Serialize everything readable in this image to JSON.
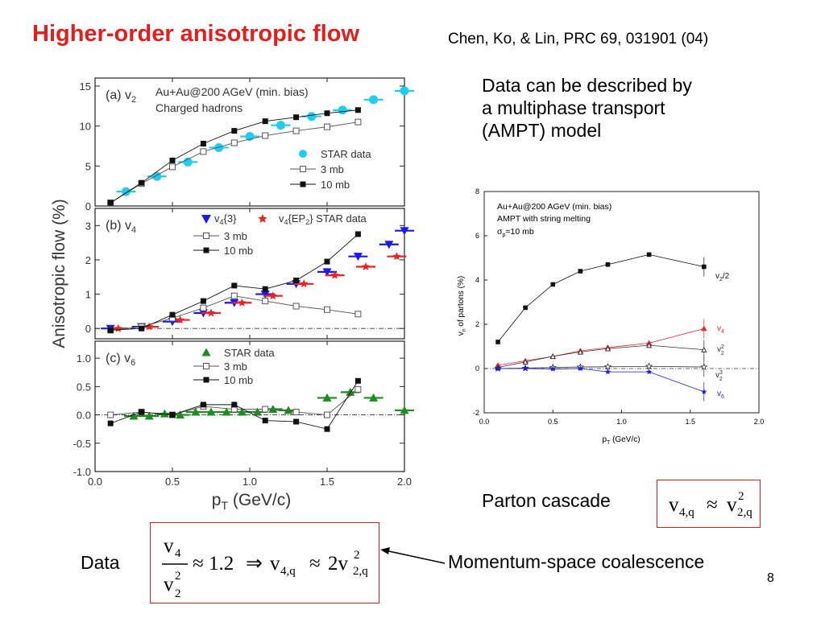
{
  "slide": {
    "title": "Higher-order anisotropic flow",
    "reference": "Chen, Ko, & Lin, PRC 69, 031901 (04)",
    "description_lines": [
      "Data can be described by",
      "a multiphase transport",
      "(AMPT) model"
    ],
    "parton_label": "Parton cascade",
    "data_label": "Data",
    "coalescence_label": "Momentum-space coalescence",
    "page_number": "8",
    "formula1": {
      "lhs": "v",
      "lhs_sub": "4,q",
      "op": "≈",
      "rhs": "v",
      "rhs_sup": "2",
      "rhs_sub": "2,q"
    },
    "formula2": {
      "num": "v",
      "num_sub": "4",
      "den": "v",
      "den_sup": "2",
      "den_sub": "2",
      "approx": "≈ 1.2",
      "implies": "⇒",
      "v": "v",
      "v_sub": "4,q",
      "approx2": "≈",
      "coef": "2v",
      "coef_sup": "2",
      "coef_sub": "2,q"
    },
    "colors": {
      "title": "#e21f1f",
      "star_cyan": "#22ccee",
      "star_blue": "#1a1aee",
      "star_red": "#ee2222",
      "star_green": "#1e8c1e",
      "box_border": "#e02020"
    }
  },
  "chart_data": [
    {
      "type": "scatter",
      "panel": "(a)",
      "panel_label": "(a) v",
      "panel_sub": "2",
      "annotation": [
        "Au+Au@200 AGeV (min. bias)",
        "Charged hadrons"
      ],
      "ylabel": "Anisotropic flow (%)",
      "xlabel": "p",
      "xlabel_sub": "T",
      "xlabel_unit": " (GeV/c)",
      "xlim": [
        0,
        2.0
      ],
      "ylim": [
        0,
        16
      ],
      "yticks": [
        "0",
        "5",
        "10",
        "15"
      ],
      "legend": [
        {
          "name": "STAR data",
          "marker": "circle",
          "color": "#22ccee"
        },
        {
          "name": "3 mb",
          "marker": "open-square",
          "color": "#555555"
        },
        {
          "name": "10 mb",
          "marker": "filled-square",
          "color": "#111111"
        }
      ],
      "series": [
        {
          "name": "STAR data",
          "x": [
            0.2,
            0.4,
            0.6,
            0.8,
            1.0,
            1.2,
            1.4,
            1.6,
            1.8,
            2.0
          ],
          "y": [
            1.8,
            3.7,
            5.5,
            7.3,
            8.7,
            10.1,
            11.2,
            12.0,
            13.3,
            14.4
          ]
        },
        {
          "name": "3 mb",
          "x": [
            0.1,
            0.3,
            0.5,
            0.7,
            0.9,
            1.1,
            1.3,
            1.5,
            1.7
          ],
          "y": [
            0.4,
            2.8,
            4.9,
            6.8,
            7.9,
            8.8,
            9.4,
            9.9,
            10.5
          ]
        },
        {
          "name": "10 mb",
          "x": [
            0.1,
            0.3,
            0.5,
            0.7,
            0.9,
            1.1,
            1.3,
            1.5,
            1.7
          ],
          "y": [
            0.4,
            2.9,
            5.7,
            7.8,
            9.4,
            10.6,
            11.1,
            11.6,
            12.0
          ]
        }
      ]
    },
    {
      "type": "scatter",
      "panel": "(b)",
      "panel_label": "(b) v",
      "panel_sub": "4",
      "xlim": [
        0,
        2.0
      ],
      "ylim": [
        -0.3,
        3.5
      ],
      "yticks": [
        "0",
        "1",
        "2",
        "3"
      ],
      "legend": [
        {
          "name": "v4{3}",
          "marker": "triangle-down",
          "color": "#1a1aee"
        },
        {
          "name": "v4{EP2} STAR data",
          "marker": "star",
          "color": "#ee2222"
        },
        {
          "name": "3 mb",
          "marker": "open-square",
          "color": "#555555"
        },
        {
          "name": "10 mb",
          "marker": "filled-square",
          "color": "#111111"
        }
      ],
      "series": [
        {
          "name": "v4{3}",
          "x": [
            0.1,
            0.3,
            0.5,
            0.7,
            0.9,
            1.1,
            1.3,
            1.5,
            1.7,
            1.9,
            2.0
          ],
          "y": [
            0.0,
            0.05,
            0.2,
            0.45,
            0.75,
            1.0,
            1.3,
            1.65,
            2.1,
            2.45,
            2.85
          ]
        },
        {
          "name": "v4{EP2} STAR data",
          "x": [
            0.15,
            0.35,
            0.55,
            0.75,
            0.95,
            1.15,
            1.35,
            1.55,
            1.75,
            1.95
          ],
          "y": [
            0.0,
            0.05,
            0.25,
            0.45,
            0.75,
            0.95,
            1.3,
            1.55,
            1.8,
            2.1
          ]
        },
        {
          "name": "3 mb",
          "x": [
            0.1,
            0.3,
            0.5,
            0.7,
            0.9,
            1.1,
            1.3,
            1.5,
            1.7
          ],
          "y": [
            -0.05,
            0.05,
            0.3,
            0.6,
            0.95,
            0.8,
            0.65,
            0.55,
            0.42
          ]
        },
        {
          "name": "10 mb",
          "x": [
            0.1,
            0.3,
            0.5,
            0.7,
            0.9,
            1.1,
            1.3,
            1.5,
            1.7
          ],
          "y": [
            -0.05,
            0.0,
            0.4,
            0.8,
            1.25,
            1.15,
            1.4,
            1.95,
            2.75
          ]
        }
      ]
    },
    {
      "type": "scatter",
      "panel": "(c)",
      "panel_label": "(c) v",
      "panel_sub": "6",
      "xlim": [
        0,
        2.0
      ],
      "ylim": [
        -1.0,
        1.3
      ],
      "yticks": [
        "-1.0",
        "-0.5",
        "0.0",
        "0.5",
        "1.0"
      ],
      "xticks": [
        "0.0",
        "0.5",
        "1.0",
        "1.5",
        "2.0"
      ],
      "legend": [
        {
          "name": "STAR data",
          "marker": "triangle-up",
          "color": "#1e8c1e"
        },
        {
          "name": "3 mb",
          "marker": "open-square",
          "color": "#555555"
        },
        {
          "name": "10 mb",
          "marker": "filled-square",
          "color": "#111111"
        }
      ],
      "series": [
        {
          "name": "STAR data",
          "x": [
            0.25,
            0.35,
            0.45,
            0.55,
            0.65,
            0.75,
            0.85,
            0.95,
            1.05,
            1.15,
            1.25,
            1.5,
            1.65,
            1.8,
            2.0
          ],
          "y": [
            -0.02,
            -0.02,
            0.02,
            0.0,
            0.05,
            0.05,
            0.05,
            0.05,
            0.05,
            0.1,
            0.08,
            0.3,
            0.4,
            0.3,
            0.08
          ]
        },
        {
          "name": "3 mb",
          "x": [
            0.1,
            0.3,
            0.5,
            0.7,
            0.9,
            1.1,
            1.3,
            1.5,
            1.7
          ],
          "y": [
            0.0,
            0.05,
            0.0,
            0.15,
            0.1,
            0.1,
            0.05,
            0.0,
            0.45
          ]
        },
        {
          "name": "10 mb",
          "x": [
            0.1,
            0.3,
            0.5,
            0.7,
            0.9,
            1.1,
            1.3,
            1.5,
            1.7
          ],
          "y": [
            -0.15,
            0.05,
            0.0,
            0.18,
            0.18,
            -0.1,
            -0.12,
            -0.25,
            0.6
          ]
        }
      ]
    },
    {
      "type": "line",
      "panel": "AMPT",
      "annotation": [
        "Au+Au@200 AGeV (min. bias)",
        "AMPT with string melting",
        "σ",
        "p",
        "=10 mb"
      ],
      "ylabel": "v",
      "ylabel_sub": "n",
      "ylabel_rest": " of partons (%)",
      "xlabel": "p",
      "xlabel_sub": "T",
      "xlabel_unit": " (GeV/c)",
      "xlim": [
        0,
        2.0
      ],
      "ylim": [
        -2,
        8
      ],
      "xticks": [
        "0.0",
        "0.5",
        "1.0",
        "1.5",
        "2.0"
      ],
      "yticks": [
        "-2",
        "0",
        "2",
        "4",
        "6",
        "8"
      ],
      "series": [
        {
          "name": "v2/2",
          "label": "v",
          "label_sub": "2",
          "label_rest": "/2",
          "color": "#111111",
          "marker": "filled-square",
          "x": [
            0.1,
            0.3,
            0.5,
            0.7,
            0.9,
            1.2,
            1.6
          ],
          "y": [
            1.2,
            2.75,
            3.8,
            4.4,
            4.7,
            5.15,
            4.6
          ]
        },
        {
          "name": "v4",
          "label": "v",
          "label_sub": "4",
          "color": "#ee2222",
          "marker": "triangle-up",
          "x": [
            0.1,
            0.3,
            0.5,
            0.7,
            0.9,
            1.2,
            1.6
          ],
          "y": [
            0.15,
            0.35,
            0.55,
            0.8,
            0.95,
            1.15,
            1.8
          ]
        },
        {
          "name": "v2^2",
          "label": "v",
          "label_sub": "2",
          "label_sup": "2",
          "color": "#333333",
          "marker": "open-triangle",
          "x": [
            0.1,
            0.3,
            0.5,
            0.7,
            0.9,
            1.2,
            1.6
          ],
          "y": [
            0.05,
            0.3,
            0.55,
            0.75,
            0.9,
            1.05,
            0.85
          ]
        },
        {
          "name": "v2^3",
          "label": "v",
          "label_sub": "2",
          "label_sup": "3",
          "color": "#333333",
          "marker": "open-star",
          "x": [
            0.1,
            0.3,
            0.5,
            0.7,
            0.9,
            1.2,
            1.6
          ],
          "y": [
            0.0,
            0.02,
            0.05,
            0.07,
            0.08,
            0.1,
            0.07
          ]
        },
        {
          "name": "v6",
          "label": "v",
          "label_sub": "6",
          "color": "#1a1aee",
          "marker": "star",
          "x": [
            0.1,
            0.3,
            0.5,
            0.7,
            0.9,
            1.2,
            1.6
          ],
          "y": [
            0.0,
            0.0,
            -0.02,
            0.0,
            -0.15,
            -0.15,
            -1.05
          ]
        }
      ]
    }
  ]
}
